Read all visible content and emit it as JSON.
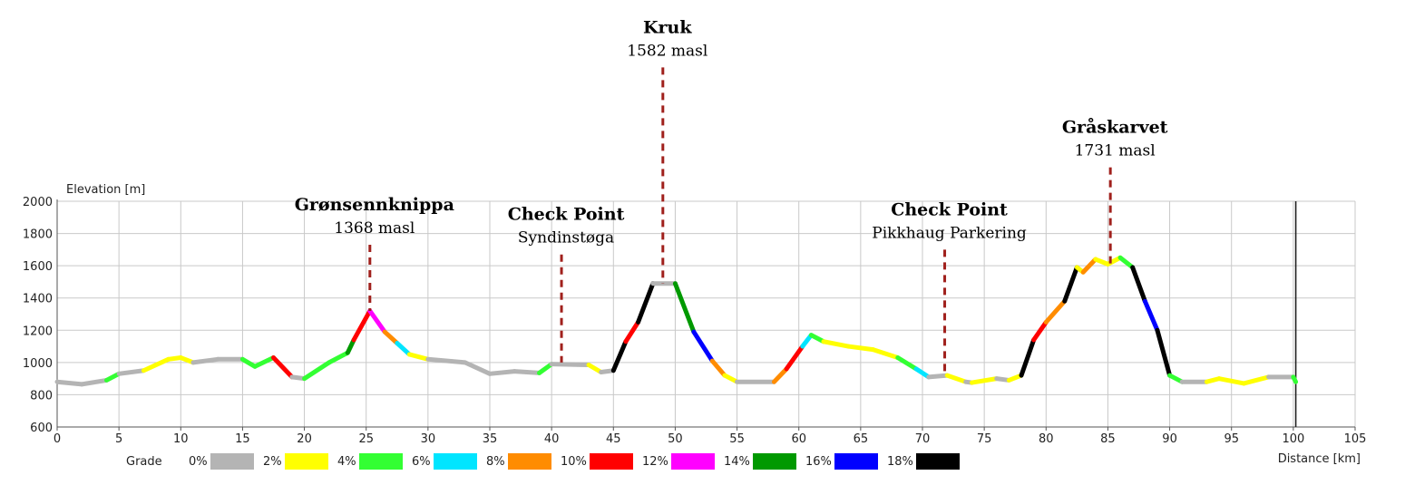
{
  "chart_data": {
    "type": "line",
    "ylabel": "Elevation [m]",
    "xlabel": "Distance [km]",
    "xlim": [
      0,
      105
    ],
    "ylim": [
      600,
      2000
    ],
    "x_ticks": [
      "0",
      "5",
      "10",
      "15",
      "20",
      "25",
      "30",
      "35",
      "40",
      "45",
      "50",
      "55",
      "60",
      "65",
      "70",
      "75",
      "80",
      "85",
      "90",
      "95",
      "100",
      "105"
    ],
    "y_ticks": [
      "600",
      "800",
      "1000",
      "1200",
      "1400",
      "1600",
      "1800",
      "2000"
    ],
    "grid": true,
    "end_marker_km": 100.2,
    "legend": {
      "title": "Grade",
      "position": "bottom",
      "items": [
        {
          "label": "0%",
          "color": "#b4b4b4"
        },
        {
          "label": "2%",
          "color": "#ffff00"
        },
        {
          "label": "4%",
          "color": "#33ff33"
        },
        {
          "label": "6%",
          "color": "#00e5ff"
        },
        {
          "label": "8%",
          "color": "#ff8c00"
        },
        {
          "label": "10%",
          "color": "#ff0000"
        },
        {
          "label": "12%",
          "color": "#ff00ff"
        },
        {
          "label": "14%",
          "color": "#009900"
        },
        {
          "label": "16%",
          "color": "#0000ff"
        },
        {
          "label": "18%",
          "color": "#000000"
        }
      ]
    },
    "profile": [
      {
        "x": 0,
        "y": 880,
        "c": 0
      },
      {
        "x": 2,
        "y": 865,
        "c": 0
      },
      {
        "x": 4,
        "y": 890,
        "c": 2
      },
      {
        "x": 5,
        "y": 930,
        "c": 0
      },
      {
        "x": 7,
        "y": 950,
        "c": 1
      },
      {
        "x": 9,
        "y": 1020,
        "c": 1
      },
      {
        "x": 10,
        "y": 1030,
        "c": 1
      },
      {
        "x": 11,
        "y": 1000,
        "c": 0
      },
      {
        "x": 13,
        "y": 1020,
        "c": 0
      },
      {
        "x": 15,
        "y": 1020,
        "c": 2
      },
      {
        "x": 16,
        "y": 975,
        "c": 2
      },
      {
        "x": 17.5,
        "y": 1030,
        "c": 5
      },
      {
        "x": 19,
        "y": 910,
        "c": 0
      },
      {
        "x": 20,
        "y": 900,
        "c": 2
      },
      {
        "x": 22,
        "y": 1000,
        "c": 2
      },
      {
        "x": 23.5,
        "y": 1060,
        "c": 7
      },
      {
        "x": 24,
        "y": 1140,
        "c": 5
      },
      {
        "x": 25.3,
        "y": 1320,
        "c": 6
      },
      {
        "x": 26.5,
        "y": 1190,
        "c": 4
      },
      {
        "x": 27.5,
        "y": 1120,
        "c": 3
      },
      {
        "x": 28.5,
        "y": 1050,
        "c": 1
      },
      {
        "x": 30,
        "y": 1020,
        "c": 0
      },
      {
        "x": 33,
        "y": 1000,
        "c": 0
      },
      {
        "x": 35,
        "y": 930,
        "c": 0
      },
      {
        "x": 37,
        "y": 945,
        "c": 0
      },
      {
        "x": 39,
        "y": 935,
        "c": 2
      },
      {
        "x": 40,
        "y": 990,
        "c": 0
      },
      {
        "x": 43,
        "y": 985,
        "c": 1
      },
      {
        "x": 44,
        "y": 940,
        "c": 0
      },
      {
        "x": 45,
        "y": 950,
        "c": 9
      },
      {
        "x": 46,
        "y": 1130,
        "c": 5
      },
      {
        "x": 47,
        "y": 1250,
        "c": 9
      },
      {
        "x": 48.2,
        "y": 1490,
        "c": 0
      },
      {
        "x": 50,
        "y": 1490,
        "c": 7
      },
      {
        "x": 51.5,
        "y": 1190,
        "c": 8
      },
      {
        "x": 53,
        "y": 1010,
        "c": 4
      },
      {
        "x": 54,
        "y": 920,
        "c": 1
      },
      {
        "x": 55,
        "y": 880,
        "c": 0
      },
      {
        "x": 58,
        "y": 880,
        "c": 4
      },
      {
        "x": 59,
        "y": 960,
        "c": 5
      },
      {
        "x": 60.3,
        "y": 1100,
        "c": 3
      },
      {
        "x": 61,
        "y": 1170,
        "c": 2
      },
      {
        "x": 62,
        "y": 1130,
        "c": 1
      },
      {
        "x": 64,
        "y": 1100,
        "c": 1
      },
      {
        "x": 66,
        "y": 1080,
        "c": 1
      },
      {
        "x": 68,
        "y": 1030,
        "c": 2
      },
      {
        "x": 69.5,
        "y": 960,
        "c": 3
      },
      {
        "x": 70.5,
        "y": 910,
        "c": 0
      },
      {
        "x": 72,
        "y": 920,
        "c": 1
      },
      {
        "x": 73.5,
        "y": 880,
        "c": 0
      },
      {
        "x": 74,
        "y": 875,
        "c": 1
      },
      {
        "x": 76,
        "y": 900,
        "c": 0
      },
      {
        "x": 77,
        "y": 890,
        "c": 1
      },
      {
        "x": 78,
        "y": 920,
        "c": 9
      },
      {
        "x": 79,
        "y": 1140,
        "c": 5
      },
      {
        "x": 80,
        "y": 1250,
        "c": 4
      },
      {
        "x": 81.5,
        "y": 1380,
        "c": 9
      },
      {
        "x": 82.5,
        "y": 1590,
        "c": 1
      },
      {
        "x": 83,
        "y": 1560,
        "c": 4
      },
      {
        "x": 84,
        "y": 1640,
        "c": 1
      },
      {
        "x": 85,
        "y": 1610,
        "c": 1
      },
      {
        "x": 86,
        "y": 1650,
        "c": 2
      },
      {
        "x": 87,
        "y": 1590,
        "c": 9
      },
      {
        "x": 88,
        "y": 1380,
        "c": 8
      },
      {
        "x": 89,
        "y": 1200,
        "c": 9
      },
      {
        "x": 90,
        "y": 920,
        "c": 2
      },
      {
        "x": 91,
        "y": 880,
        "c": 0
      },
      {
        "x": 93,
        "y": 880,
        "c": 1
      },
      {
        "x": 94,
        "y": 900,
        "c": 1
      },
      {
        "x": 96,
        "y": 870,
        "c": 1
      },
      {
        "x": 98,
        "y": 910,
        "c": 0
      },
      {
        "x": 100,
        "y": 910,
        "c": 2
      },
      {
        "x": 100.2,
        "y": 880,
        "c": 2
      }
    ],
    "annotations": [
      {
        "title": "Grønsennknippa",
        "subtitle": "1368 masl",
        "x": 25.3,
        "line_top": 1730,
        "line_bottom": 1320
      },
      {
        "title": "Check Point",
        "subtitle": "Syndinstøga",
        "x": 40.8,
        "line_top": 1670,
        "line_bottom": 1000
      },
      {
        "title": "Kruk",
        "subtitle": "1582 masl",
        "x": 49,
        "line_top": 2830,
        "line_bottom": 1490
      },
      {
        "title": "Check Point",
        "subtitle": "Pikkhaug Parkering",
        "x": 71.8,
        "line_top": 1700,
        "line_bottom": 920
      },
      {
        "title": "Gråskarvet",
        "subtitle": "1731 masl",
        "x": 85.2,
        "line_top": 2210,
        "line_bottom": 1610
      }
    ]
  }
}
